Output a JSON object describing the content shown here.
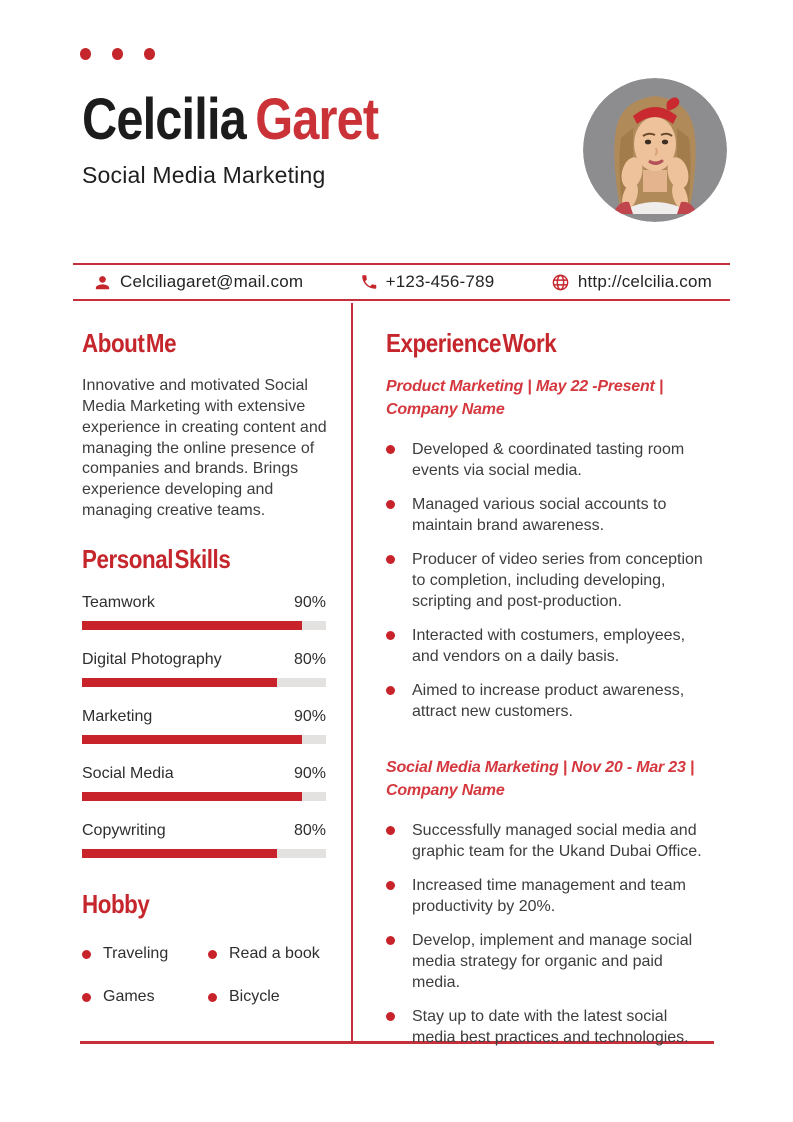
{
  "header": {
    "name_black": "Celcilia",
    "name_red": "Garet",
    "subtitle": "Social Media Marketing",
    "photo_alt": "profile-photo"
  },
  "contact": {
    "email": "Celciliagaret@mail.com",
    "phone": "+123-456-789",
    "website": "http://celcilia.com"
  },
  "about": {
    "title": "About Me",
    "text": "Innovative and motivated Social Media Marketing with extensive experience in creating content and managing the online presence of companies and brands. Brings experience developing and managing creative teams."
  },
  "skills": {
    "title": "Personal Skills",
    "items": [
      {
        "label": "Teamwork",
        "value": "90%",
        "percent": 90
      },
      {
        "label": "Digital Photography",
        "value": "80%",
        "percent": 80
      },
      {
        "label": "Marketing",
        "value": "90%",
        "percent": 90
      },
      {
        "label": "Social Media",
        "value": "90%",
        "percent": 90
      },
      {
        "label": "Copywriting",
        "value": "80%",
        "percent": 80
      }
    ]
  },
  "hobby": {
    "title": "Hobby",
    "items": [
      "Traveling",
      "Read a book",
      "Games",
      "Bicycle"
    ]
  },
  "experience": {
    "title": "Experience Work",
    "jobs": [
      {
        "role_line": "Product Marketing | May 22 -Present |",
        "company_line": "Company Name",
        "bullets": [
          "Developed & coordinated tasting room events via social media.",
          "Managed various social accounts to maintain brand awareness.",
          "Producer of video series from conception to completion, including developing, scripting and post-production.",
          "Interacted with costumers, employees, and vendors on a daily basis.",
          "Aimed to increase product awareness, attract new customers."
        ]
      },
      {
        "role_line": "Social Media Marketing | Nov 20 - Mar 23 |",
        "company_line": "Company Name",
        "bullets": [
          "Successfully managed social media and graphic team for the Ukand Dubai Office.",
          "Increased time management and team productivity by 20%.",
          "Develop, implement and manage social media strategy for organic and paid media.",
          "Stay up to date with the latest social media best practices and technologies."
        ]
      }
    ]
  },
  "colors": {
    "primary_red": "#c5262c",
    "bright_red": "#d4383e",
    "bar_red": "#c8222a",
    "bar_track": "#e4e1e1",
    "text_dark": "#1c1c1c",
    "text_body": "#3d3d3d"
  }
}
